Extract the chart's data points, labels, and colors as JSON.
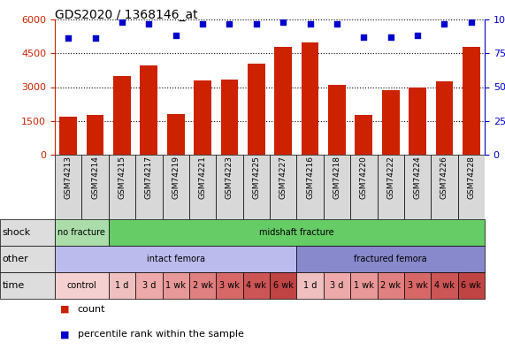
{
  "title": "GDS2020 / 1368146_at",
  "samples": [
    "GSM74213",
    "GSM74214",
    "GSM74215",
    "GSM74217",
    "GSM74219",
    "GSM74221",
    "GSM74223",
    "GSM74225",
    "GSM74227",
    "GSM74216",
    "GSM74218",
    "GSM74220",
    "GSM74222",
    "GSM74224",
    "GSM74226",
    "GSM74228"
  ],
  "bar_values": [
    1700,
    1750,
    3500,
    3950,
    1800,
    3300,
    3350,
    4050,
    4800,
    5000,
    3100,
    1750,
    2850,
    2980,
    3250,
    4800
  ],
  "percentile_values": [
    86,
    86,
    98,
    97,
    88,
    97,
    97,
    97,
    98,
    97,
    97,
    87,
    87,
    88,
    97,
    98
  ],
  "bar_color": "#cc2200",
  "percentile_color": "#0000cc",
  "ylim_left": [
    0,
    6000
  ],
  "ylim_right": [
    0,
    100
  ],
  "yticks_left": [
    0,
    1500,
    3000,
    4500,
    6000
  ],
  "yticks_right": [
    0,
    25,
    50,
    75,
    100
  ],
  "shock_groups": [
    {
      "text": "no fracture",
      "start": 0,
      "end": 2,
      "color": "#aaddaa"
    },
    {
      "text": "midshaft fracture",
      "start": 2,
      "end": 16,
      "color": "#66cc66"
    }
  ],
  "other_groups": [
    {
      "text": "intact femora",
      "start": 0,
      "end": 9,
      "color": "#bbbbee"
    },
    {
      "text": "fractured femora",
      "start": 9,
      "end": 16,
      "color": "#8888cc"
    }
  ],
  "time_cells": [
    {
      "text": "control",
      "start": 0,
      "end": 2,
      "color": "#f5d0d0"
    },
    {
      "text": "1 d",
      "start": 2,
      "end": 3,
      "color": "#f0c0c0"
    },
    {
      "text": "3 d",
      "start": 3,
      "end": 4,
      "color": "#eeaaaa"
    },
    {
      "text": "1 wk",
      "start": 4,
      "end": 5,
      "color": "#e89898"
    },
    {
      "text": "2 wk",
      "start": 5,
      "end": 6,
      "color": "#e08080"
    },
    {
      "text": "3 wk",
      "start": 6,
      "end": 7,
      "color": "#d86868"
    },
    {
      "text": "4 wk",
      "start": 7,
      "end": 8,
      "color": "#cc5555"
    },
    {
      "text": "6 wk",
      "start": 8,
      "end": 9,
      "color": "#c04444"
    },
    {
      "text": "1 d",
      "start": 9,
      "end": 10,
      "color": "#f0c0c0"
    },
    {
      "text": "3 d",
      "start": 10,
      "end": 11,
      "color": "#eeaaaa"
    },
    {
      "text": "1 wk",
      "start": 11,
      "end": 12,
      "color": "#e89898"
    },
    {
      "text": "2 wk",
      "start": 12,
      "end": 13,
      "color": "#e08080"
    },
    {
      "text": "3 wk",
      "start": 13,
      "end": 14,
      "color": "#d86868"
    },
    {
      "text": "4 wk",
      "start": 14,
      "end": 15,
      "color": "#cc5555"
    },
    {
      "text": "6 wk",
      "start": 15,
      "end": 16,
      "color": "#c04444"
    }
  ],
  "row_labels": [
    "shock",
    "other",
    "time"
  ],
  "row_label_color": "#dddddd",
  "background_color": "#ffffff"
}
